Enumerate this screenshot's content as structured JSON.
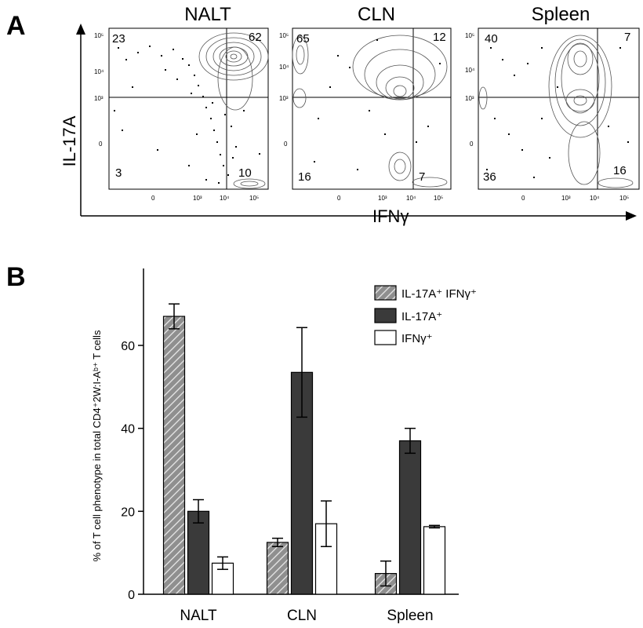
{
  "panels": {
    "a": "A",
    "b": "B"
  },
  "flow": {
    "y_axis_label": "IL-17A",
    "x_axis_label": "IFNγ",
    "plots": [
      {
        "title": "NALT",
        "q_ul": "23",
        "q_ur": "62",
        "q_ll": "3",
        "q_lr": "10"
      },
      {
        "title": "CLN",
        "q_ul": "65",
        "q_ur": "12",
        "q_ll": "16",
        "q_lr": "7"
      },
      {
        "title": "Spleen",
        "q_ul": "40",
        "q_ur": "7",
        "q_ll": "36",
        "q_lr": "16"
      }
    ],
    "axis_ticks": [
      "10⁵",
      "10⁴",
      "10³",
      "0"
    ],
    "x_ticks": [
      "0",
      "10³",
      "10⁴",
      "10⁵"
    ]
  },
  "chart_data": {
    "type": "bar",
    "ylabel": "% of T cell phenotype in total CD4⁺2W:I-Aᵇ⁺ T cells",
    "xlabel": "",
    "ylim": [
      0,
      70
    ],
    "yticks": [
      0,
      20,
      40,
      60
    ],
    "categories": [
      "NALT",
      "CLN",
      "Spleen"
    ],
    "series": [
      {
        "name": "IL-17A⁺ IFNγ⁺",
        "values": [
          67,
          12.5,
          5
        ],
        "errors": [
          3,
          1,
          3
        ],
        "fill": "hatched-gray"
      },
      {
        "name": "IL-17A⁺",
        "values": [
          20,
          53.5,
          37
        ],
        "errors": [
          2.8,
          10.8,
          3
        ],
        "fill": "#3a3a3a"
      },
      {
        "name": "IFNγ⁺",
        "values": [
          7.5,
          17,
          16.3
        ],
        "errors": [
          1.5,
          5.5,
          0.3
        ],
        "fill": "#ffffff"
      }
    ],
    "legend_position": "top-right",
    "grid": false
  },
  "colors": {
    "dark": "#3a3a3a",
    "hatch": "#9a9a9a",
    "axis": "#000000"
  }
}
